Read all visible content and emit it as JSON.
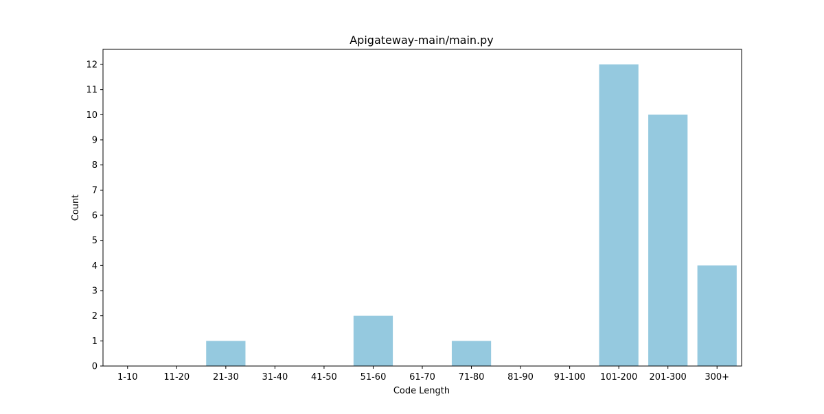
{
  "chart_data": {
    "type": "bar",
    "title": "Apigateway-main/main.py",
    "xlabel": "Code Length",
    "ylabel": "Count",
    "categories": [
      "1-10",
      "11-20",
      "21-30",
      "31-40",
      "41-50",
      "51-60",
      "61-70",
      "71-80",
      "81-90",
      "91-100",
      "101-200",
      "201-300",
      "300+"
    ],
    "values": [
      0,
      0,
      1,
      0,
      0,
      2,
      0,
      1,
      0,
      0,
      12,
      10,
      4
    ],
    "ylim": [
      0,
      12.6
    ],
    "yticks": [
      "0",
      "1",
      "2",
      "3",
      "4",
      "5",
      "6",
      "7",
      "8",
      "9",
      "10",
      "11",
      "12"
    ],
    "grid": false,
    "legend": "none",
    "bar_color": "#95c9df"
  }
}
